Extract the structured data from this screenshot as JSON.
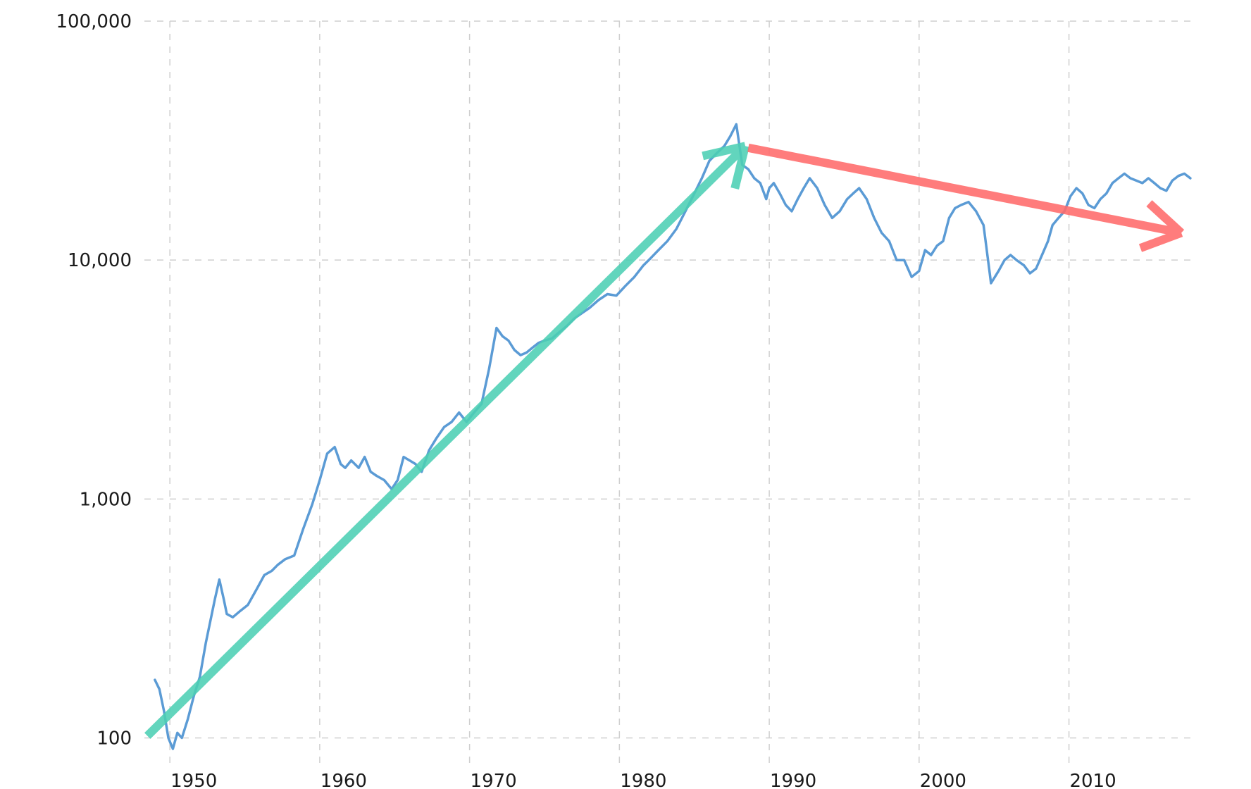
{
  "chart_data": {
    "type": "line",
    "title": "",
    "xlabel": "",
    "ylabel": "",
    "y_scale": "log",
    "xlim": [
      1948.3,
      2018.2
    ],
    "ylim": [
      90,
      100000
    ],
    "grid": true,
    "legend": "none",
    "x_ticks": [
      1950,
      1960,
      1970,
      1980,
      1990,
      2000,
      2010
    ],
    "x_tick_labels": [
      "1950",
      "1960",
      "1970",
      "1980",
      "1990",
      "2000",
      "2010"
    ],
    "y_ticks": [
      100,
      1000,
      10000,
      100000
    ],
    "y_tick_labels": [
      "100",
      "1,000",
      "10,000",
      "100,000"
    ],
    "series": [
      {
        "color": "#5b9bd5",
        "x": [
          1949.0,
          1949.3,
          1949.6,
          1949.9,
          1950.2,
          1950.5,
          1950.8,
          1951.2,
          1951.6,
          1952.0,
          1952.4,
          1952.8,
          1953.0,
          1953.3,
          1953.6,
          1953.8,
          1954.2,
          1954.7,
          1955.2,
          1955.8,
          1956.3,
          1956.8,
          1957.2,
          1957.7,
          1958.3,
          1958.9,
          1959.5,
          1960.0,
          1960.5,
          1961.0,
          1961.4,
          1961.7,
          1962.1,
          1962.6,
          1963.0,
          1963.4,
          1963.8,
          1964.3,
          1964.8,
          1965.2,
          1965.6,
          1966.0,
          1966.4,
          1966.8,
          1967.3,
          1967.8,
          1968.3,
          1968.8,
          1969.3,
          1969.8,
          1970.3,
          1970.8,
          1971.3,
          1971.8,
          1972.2,
          1972.6,
          1973.0,
          1973.4,
          1973.8,
          1974.2,
          1974.6,
          1975.0,
          1975.5,
          1976.0,
          1976.5,
          1977.0,
          1977.5,
          1978.0,
          1978.6,
          1979.2,
          1979.8,
          1980.4,
          1981.0,
          1981.6,
          1982.1,
          1982.6,
          1983.2,
          1983.8,
          1984.4,
          1985.0,
          1985.5,
          1986.0,
          1986.5,
          1987.0,
          1987.4,
          1987.8,
          1988.2,
          1988.6,
          1989.0,
          1989.4,
          1989.8,
          1990.0,
          1990.3,
          1990.7,
          1991.1,
          1991.5,
          1991.9,
          1992.3,
          1992.7,
          1993.2,
          1993.7,
          1994.2,
          1994.7,
          1995.2,
          1995.6,
          1996.0,
          1996.5,
          1997.0,
          1997.5,
          1998.0,
          1998.5,
          1999.0,
          1999.5,
          2000.0,
          2000.4,
          2000.8,
          2001.2,
          2001.6,
          2002.0,
          2002.4,
          2002.8,
          2003.3,
          2003.8,
          2004.3,
          2004.8,
          2005.3,
          2005.7,
          2006.1,
          2006.5,
          2007.0,
          2007.4,
          2007.8,
          2008.2,
          2008.6,
          2008.9,
          2009.3,
          2009.7,
          2010.1,
          2010.5,
          2010.9,
          2011.3,
          2011.7,
          2012.1,
          2012.5,
          2012.9,
          2013.3,
          2013.7,
          2014.1,
          2014.5,
          2014.9,
          2015.3,
          2015.7,
          2016.1,
          2016.5,
          2016.9,
          2017.3,
          2017.7,
          2018.1
        ],
        "y": [
          175,
          160,
          130,
          100,
          90,
          105,
          100,
          120,
          150,
          180,
          250,
          330,
          380,
          460,
          380,
          330,
          320,
          340,
          360,
          420,
          480,
          500,
          530,
          560,
          580,
          750,
          950,
          1200,
          1550,
          1650,
          1400,
          1350,
          1450,
          1350,
          1500,
          1300,
          1250,
          1200,
          1100,
          1200,
          1500,
          1450,
          1400,
          1300,
          1600,
          1800,
          2000,
          2100,
          2300,
          2100,
          2300,
          2500,
          3500,
          5200,
          4800,
          4600,
          4200,
          4000,
          4100,
          4300,
          4500,
          4600,
          4700,
          5000,
          5300,
          5700,
          6000,
          6300,
          6800,
          7200,
          7100,
          7800,
          8500,
          9500,
          10200,
          11000,
          12000,
          13500,
          16000,
          19000,
          22000,
          26000,
          28000,
          30000,
          33000,
          37000,
          25000,
          24000,
          22000,
          21000,
          18000,
          20000,
          21000,
          19000,
          17000,
          16000,
          18000,
          20000,
          22000,
          20000,
          17000,
          15000,
          16000,
          18000,
          19000,
          20000,
          18000,
          15000,
          13000,
          12000,
          10000,
          10000,
          8500,
          9000,
          11000,
          10500,
          11500,
          12000,
          15000,
          16500,
          17000,
          17500,
          16000,
          14000,
          8000,
          9000,
          10000,
          10500,
          10000,
          9500,
          8800,
          9200,
          10500,
          12000,
          14000,
          15000,
          16000,
          18500,
          20000,
          19000,
          17000,
          16500,
          18000,
          19000,
          21000,
          22000,
          23000,
          22000,
          21500,
          21000,
          22000,
          21000,
          20000,
          19500,
          21500,
          22500,
          23000,
          22000
        ]
      }
    ],
    "annotations": [
      {
        "type": "arrow",
        "color": "#4dd0b4",
        "from": {
          "x": 1948.5,
          "y": 102
        },
        "to": {
          "x": 1988.4,
          "y": 30000
        }
      },
      {
        "type": "arrow",
        "color": "#ff6b6b",
        "from": {
          "x": 1988.6,
          "y": 29500
        },
        "to": {
          "x": 2017.5,
          "y": 13000
        }
      }
    ]
  }
}
